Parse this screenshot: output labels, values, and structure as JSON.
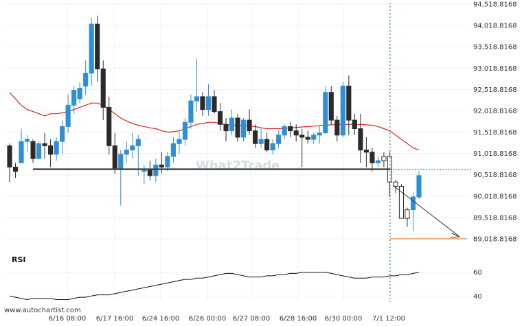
{
  "chart_data": {
    "type": "candlestick",
    "y_ticks": [
      "94,518.8168",
      "94,018.8168",
      "93,518.8168",
      "93,018.8168",
      "92,518.8168",
      "92,018.8168",
      "91,518.8168",
      "91,018.8168",
      "90,518.8168",
      "90,018.8168",
      "89,518.8168",
      "89,018.8168"
    ],
    "ylim": [
      88900,
      94550
    ],
    "x_ticks": [
      "6/16 08:00",
      "6/17 16:00",
      "6/24 16:00",
      "6/26 00:00",
      "6/27 08:00",
      "6/28 16:00",
      "6/30 00:00",
      "7/1 12:00"
    ],
    "candles": [
      [
        91200,
        91250,
        90350,
        90700
      ],
      [
        90700,
        90800,
        90450,
        90600
      ],
      [
        90800,
        91600,
        90800,
        91300
      ],
      [
        91300,
        91450,
        91050,
        91350
      ],
      [
        91300,
        91350,
        90800,
        90900
      ],
      [
        90900,
        91300,
        90900,
        91250
      ],
      [
        91250,
        91500,
        90900,
        91200
      ],
      [
        91200,
        91350,
        90700,
        91000
      ],
      [
        91000,
        91400,
        90850,
        91300
      ],
      [
        91300,
        91800,
        91000,
        91650
      ],
      [
        91650,
        92400,
        91500,
        92150
      ],
      [
        92150,
        92600,
        91950,
        92500
      ],
      [
        92300,
        92700,
        92200,
        92550
      ],
      [
        92600,
        93200,
        92400,
        92900
      ],
      [
        92900,
        94200,
        92600,
        94050
      ],
      [
        94050,
        94250,
        92700,
        93000
      ],
      [
        93000,
        93200,
        91800,
        92100
      ],
      [
        92100,
        92350,
        91000,
        91200
      ],
      [
        91200,
        91500,
        90550,
        90650
      ],
      [
        90650,
        91100,
        89800,
        91000
      ],
      [
        91000,
        91300,
        90800,
        91100
      ],
      [
        91100,
        91500,
        90900,
        91200
      ],
      [
        91200,
        91450,
        90500,
        91350
      ],
      [
        90600,
        90750,
        90300,
        90650
      ],
      [
        90650,
        90850,
        90400,
        90500
      ],
      [
        90500,
        90900,
        90350,
        90750
      ],
      [
        90750,
        91050,
        90550,
        90700
      ],
      [
        90700,
        91050,
        90600,
        90950
      ],
      [
        90950,
        91400,
        90800,
        91250
      ],
      [
        91250,
        91550,
        91000,
        91350
      ],
      [
        91350,
        91850,
        91200,
        91750
      ],
      [
        91750,
        92400,
        91600,
        92250
      ],
      [
        92250,
        93250,
        92000,
        92350
      ],
      [
        92350,
        92450,
        91900,
        92050
      ],
      [
        92050,
        92650,
        91900,
        92350
      ],
      [
        92350,
        92500,
        91950,
        92000
      ],
      [
        92000,
        92200,
        91550,
        91700
      ],
      [
        91700,
        91850,
        91300,
        91550
      ],
      [
        91550,
        92050,
        91450,
        91850
      ],
      [
        91850,
        91950,
        91300,
        91400
      ],
      [
        91400,
        91850,
        91300,
        91800
      ],
      [
        91800,
        92050,
        91450,
        91550
      ],
      [
        91550,
        91700,
        91150,
        91250
      ],
      [
        91250,
        91600,
        91150,
        91350
      ],
      [
        91350,
        91500,
        91050,
        91100
      ],
      [
        91100,
        91350,
        91000,
        91250
      ],
      [
        91250,
        91550,
        91150,
        91450
      ],
      [
        91450,
        91700,
        91350,
        91650
      ],
      [
        91650,
        91750,
        91400,
        91550
      ],
      [
        91550,
        91700,
        91300,
        91450
      ],
      [
        91450,
        91600,
        90700,
        91400
      ],
      [
        91400,
        91550,
        91250,
        91350
      ],
      [
        91350,
        91500,
        91250,
        91450
      ],
      [
        91450,
        91650,
        91250,
        91500
      ],
      [
        91500,
        92600,
        91500,
        92450
      ],
      [
        92450,
        92600,
        91700,
        91800
      ],
      [
        91800,
        91900,
        91300,
        91450
      ],
      [
        91450,
        92700,
        91400,
        92600
      ],
      [
        92600,
        92850,
        91450,
        91800
      ],
      [
        91800,
        91950,
        91450,
        91600
      ],
      [
        91600,
        91950,
        90800,
        91100
      ],
      [
        91100,
        91400,
        90700,
        91050
      ],
      [
        91050,
        91150,
        90600,
        90800
      ],
      [
        90800,
        90950,
        90700,
        90850
      ],
      [
        90850,
        91050,
        90700,
        90950
      ],
      [
        90950,
        91050,
        90000,
        90350
      ],
      [
        90350,
        90400,
        90100,
        90250
      ],
      [
        90250,
        90300,
        89500,
        89500
      ],
      [
        89500,
        89750,
        89300,
        89700
      ],
      [
        89700,
        90100,
        89200,
        90000
      ],
      [
        90000,
        90600,
        89950,
        90500
      ]
    ],
    "ma_series": {
      "name": "",
      "values": [
        92450,
        92300,
        92150,
        92050,
        92000,
        91950,
        91900,
        91950,
        91950,
        91970,
        92000,
        92050,
        92100,
        92150,
        92200,
        92200,
        92150,
        92050,
        91950,
        91850,
        91780,
        91720,
        91680,
        91650,
        91620,
        91600,
        91550,
        91520,
        91530,
        91550,
        91600,
        91650,
        91700,
        91720,
        91750,
        91750,
        91720,
        91700,
        91680,
        91680,
        91670,
        91660,
        91650,
        91620,
        91600,
        91600,
        91600,
        91610,
        91620,
        91630,
        91640,
        91650,
        91660,
        91670,
        91680,
        91690,
        91700,
        91700,
        91700,
        91700,
        91700,
        91690,
        91680,
        91650,
        91600,
        91550,
        91450,
        91350,
        91250,
        91150,
        91100
      ]
    },
    "support_level": 90650,
    "target_level": 89018.8168,
    "rsi": {
      "title": "RSI",
      "ticks": [
        60,
        40
      ],
      "ylim": [
        35,
        65
      ],
      "values": [
        40,
        39,
        38,
        37,
        38,
        38,
        38,
        38,
        37,
        37,
        37,
        38,
        39,
        39,
        40,
        41,
        41,
        41,
        42,
        43,
        44,
        45,
        46,
        47,
        48,
        49,
        50,
        51,
        52,
        53,
        54,
        54,
        55,
        55,
        56,
        57,
        58,
        59,
        59,
        58,
        57,
        56,
        56,
        56,
        57,
        57,
        58,
        58,
        59,
        59,
        60,
        60,
        60,
        60,
        60,
        59,
        58,
        57,
        56,
        55,
        55,
        55,
        56,
        56,
        56,
        57,
        57,
        58,
        58,
        59,
        60
      ]
    },
    "footer": "www.autochartist.com",
    "watermark": "What2Trade",
    "colors": {
      "bull": "#2f8fd6",
      "bear": "#2b2b2b",
      "ma": "#e02020",
      "target": "#f08030",
      "support": "#444444",
      "forecast_candle": "#ffffff"
    }
  }
}
